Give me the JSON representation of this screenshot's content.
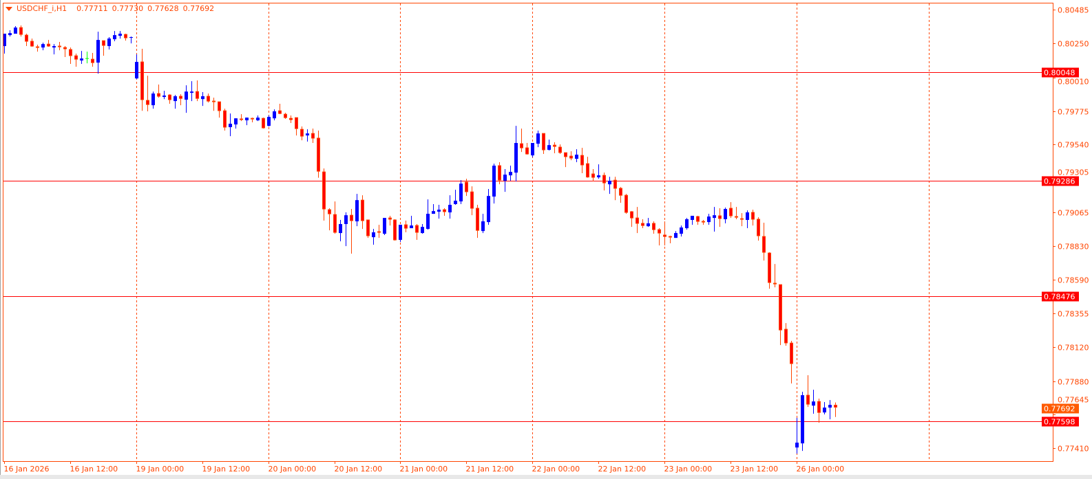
{
  "header": {
    "symbol": "USDCHF_i,H1",
    "open": "0.77711",
    "high": "0.77730",
    "low": "0.77628",
    "close": "0.77692"
  },
  "colors": {
    "frame": "#ff4500",
    "grid": "#ff4500",
    "bull": "#0000ff",
    "bear_fill": "#ff0000",
    "bear_outline": "#ff4500",
    "doji": "#00ff00",
    "hline": "#ff0000",
    "current_price_bg": "#ff5a00"
  },
  "chart_data": {
    "type": "candlestick",
    "title": "USDCHF_i,H1",
    "timeframe": "H1",
    "grid": true,
    "ylim": [
      0.7737,
      0.8053
    ],
    "y_ticks": [
      "0.80485",
      "0.80250",
      "0.80010",
      "0.79775",
      "0.79540",
      "0.79305",
      "0.79065",
      "0.78830",
      "0.78590",
      "0.78355",
      "0.78120",
      "0.77880",
      "0.77645",
      "0.77410"
    ],
    "x_labels": [
      "16 Jan 2026",
      "16 Jan 12:00",
      "19 Jan 00:00",
      "19 Jan 12:00",
      "20 Jan 00:00",
      "20 Jan 12:00",
      "21 Jan 00:00",
      "21 Jan 12:00",
      "22 Jan 00:00",
      "22 Jan 12:00",
      "23 Jan 00:00",
      "23 Jan 12:00",
      "26 Jan 00:00"
    ],
    "horizontal_lines": [
      "0.80048",
      "0.79286",
      "0.78476",
      "0.77598"
    ],
    "current_price": "0.77692",
    "ohlc_order": [
      "open",
      "high",
      "low",
      "close"
    ],
    "ohlc": [
      [
        0.80231,
        0.80318,
        0.80178,
        0.80318
      ],
      [
        0.80308,
        0.80342,
        0.80298,
        0.80322
      ],
      [
        0.80318,
        0.80371,
        0.80318,
        0.80361
      ],
      [
        0.80361,
        0.80376,
        0.80298,
        0.80308
      ],
      [
        0.80308,
        0.80318,
        0.80231,
        0.8026
      ],
      [
        0.80265,
        0.80284,
        0.80226,
        0.80226
      ],
      [
        0.80226,
        0.80241,
        0.80192,
        0.80221
      ],
      [
        0.80221,
        0.80255,
        0.80202,
        0.80245
      ],
      [
        0.80245,
        0.80274,
        0.80226,
        0.80226
      ],
      [
        0.80221,
        0.80245,
        0.80173,
        0.80231
      ],
      [
        0.80231,
        0.8026,
        0.80202,
        0.80221
      ],
      [
        0.80221,
        0.80231,
        0.80154,
        0.80207
      ],
      [
        0.80207,
        0.80221,
        0.80106,
        0.80159
      ],
      [
        0.80163,
        0.80178,
        0.80086,
        0.80134
      ],
      [
        0.8013,
        0.80197,
        0.80106,
        0.80144
      ],
      [
        0.80144,
        0.80192,
        0.8011,
        0.80144
      ],
      [
        0.80139,
        0.80183,
        0.80086,
        0.8011
      ],
      [
        0.80115,
        0.80332,
        0.80038,
        0.80274
      ],
      [
        0.80269,
        0.80269,
        0.80163,
        0.80231
      ],
      [
        0.80231,
        0.80294,
        0.80207,
        0.80284
      ],
      [
        0.80279,
        0.80337,
        0.80265,
        0.80308
      ],
      [
        0.80303,
        0.80337,
        0.80284,
        0.80318
      ],
      [
        0.80313,
        0.80318,
        0.80269,
        0.80284
      ],
      [
        0.80289,
        0.80298,
        0.8025,
        0.80294
      ],
      [
        0.80004,
        0.80173,
        0.79999,
        0.8012
      ],
      [
        0.8012,
        0.80212,
        0.79777,
        0.7985
      ],
      [
        0.7985,
        0.80023,
        0.79773,
        0.79816
      ],
      [
        0.79816,
        0.79912,
        0.79792,
        0.79898
      ],
      [
        0.79898,
        0.79961,
        0.79869,
        0.79874
      ],
      [
        0.79874,
        0.79917,
        0.79859,
        0.79884
      ],
      [
        0.79888,
        0.79893,
        0.79826,
        0.7985
      ],
      [
        0.79845,
        0.79888,
        0.79792,
        0.79879
      ],
      [
        0.79879,
        0.79893,
        0.79816,
        0.79859
      ],
      [
        0.79855,
        0.79956,
        0.79763,
        0.79912
      ],
      [
        0.79903,
        0.79985,
        0.79845,
        0.79912
      ],
      [
        0.79912,
        0.7999,
        0.79845,
        0.79859
      ],
      [
        0.79859,
        0.79908,
        0.79811,
        0.79879
      ],
      [
        0.79879,
        0.79898,
        0.79835,
        0.7984
      ],
      [
        0.79845,
        0.79869,
        0.79777,
        0.7984
      ],
      [
        0.7984,
        0.7984,
        0.79729,
        0.79773
      ],
      [
        0.79777,
        0.79792,
        0.79638,
        0.79657
      ],
      [
        0.79662,
        0.79758,
        0.79599,
        0.79686
      ],
      [
        0.79681,
        0.79724,
        0.79652,
        0.79724
      ],
      [
        0.7972,
        0.79753,
        0.79705,
        0.7971
      ],
      [
        0.7971,
        0.79729,
        0.79676,
        0.79729
      ],
      [
        0.79724,
        0.79729,
        0.79696,
        0.79715
      ],
      [
        0.7971,
        0.79744,
        0.79705,
        0.79729
      ],
      [
        0.79724,
        0.79729,
        0.79652,
        0.79652
      ],
      [
        0.79671,
        0.79744,
        0.79667,
        0.79734
      ],
      [
        0.79724,
        0.79787,
        0.7971,
        0.79773
      ],
      [
        0.79777,
        0.79826,
        0.79753,
        0.79753
      ],
      [
        0.79753,
        0.79763,
        0.7972,
        0.79724
      ],
      [
        0.79724,
        0.79744,
        0.79691,
        0.7971
      ],
      [
        0.79729,
        0.79729,
        0.79604,
        0.79647
      ],
      [
        0.79647,
        0.79667,
        0.7957,
        0.79594
      ],
      [
        0.79604,
        0.79647,
        0.79561,
        0.79618
      ],
      [
        0.79618,
        0.79652,
        0.79551,
        0.7958
      ],
      [
        0.79585,
        0.79638,
        0.79307,
        0.79348
      ],
      [
        0.79348,
        0.79372,
        0.79006,
        0.79083
      ],
      [
        0.79083,
        0.79093,
        0.78938,
        0.79049
      ],
      [
        0.79049,
        0.79141,
        0.78914,
        0.78919
      ],
      [
        0.78919,
        0.79011,
        0.78861,
        0.78982
      ],
      [
        0.78982,
        0.79064,
        0.78827,
        0.79044
      ],
      [
        0.79044,
        0.79088,
        0.78774,
        0.79001
      ],
      [
        0.79001,
        0.79194,
        0.78967,
        0.7915
      ],
      [
        0.7915,
        0.79184,
        0.78948,
        0.79001
      ],
      [
        0.79011,
        0.79011,
        0.78885,
        0.78895
      ],
      [
        0.7889,
        0.78948,
        0.78837,
        0.78924
      ],
      [
        0.78929,
        0.78977,
        0.78885,
        0.78919
      ],
      [
        0.78914,
        0.79025,
        0.78905,
        0.79025
      ],
      [
        0.79025,
        0.7904,
        0.78972,
        0.79011
      ],
      [
        0.79011,
        0.79016,
        0.78866,
        0.78866
      ],
      [
        0.78871,
        0.78977,
        0.78856,
        0.78977
      ],
      [
        0.78977,
        0.79006,
        0.78924,
        0.78948
      ],
      [
        0.78953,
        0.7904,
        0.78953,
        0.78972
      ],
      [
        0.78972,
        0.78982,
        0.78871,
        0.78919
      ],
      [
        0.78919,
        0.78982,
        0.78914,
        0.78962
      ],
      [
        0.78948,
        0.79155,
        0.78943,
        0.79054
      ],
      [
        0.79054,
        0.79122,
        0.79054,
        0.79073
      ],
      [
        0.79069,
        0.79117,
        0.7902,
        0.79083
      ],
      [
        0.79083,
        0.79093,
        0.7904,
        0.79064
      ],
      [
        0.79064,
        0.79184,
        0.7902,
        0.79117
      ],
      [
        0.79122,
        0.79223,
        0.79117,
        0.79146
      ],
      [
        0.79141,
        0.7929,
        0.79122,
        0.79266
      ],
      [
        0.79276,
        0.793,
        0.79179,
        0.79204
      ],
      [
        0.79208,
        0.79247,
        0.79044,
        0.79088
      ],
      [
        0.79093,
        0.79117,
        0.78885,
        0.78933
      ],
      [
        0.78933,
        0.79054,
        0.78919,
        0.79001
      ],
      [
        0.78996,
        0.79228,
        0.78977,
        0.79179
      ],
      [
        0.79175,
        0.79406,
        0.79126,
        0.79392
      ],
      [
        0.79392,
        0.79416,
        0.79261,
        0.79286
      ],
      [
        0.79286,
        0.79368,
        0.79208,
        0.79329
      ],
      [
        0.79324,
        0.79392,
        0.79286,
        0.79348
      ],
      [
        0.79343,
        0.79671,
        0.79281,
        0.79551
      ],
      [
        0.79546,
        0.79652,
        0.79488,
        0.79512
      ],
      [
        0.79517,
        0.79551,
        0.79469,
        0.79469
      ],
      [
        0.79464,
        0.79551,
        0.7945,
        0.79551
      ],
      [
        0.79546,
        0.79638,
        0.79522,
        0.79618
      ],
      [
        0.79618,
        0.79618,
        0.79474,
        0.79498
      ],
      [
        0.79503,
        0.79575,
        0.79498,
        0.79536
      ],
      [
        0.79536,
        0.79556,
        0.79479,
        0.79522
      ],
      [
        0.79522,
        0.79541,
        0.79474,
        0.79479
      ],
      [
        0.79483,
        0.79483,
        0.79382,
        0.7945
      ],
      [
        0.79459,
        0.79493,
        0.7943,
        0.7944
      ],
      [
        0.7944,
        0.79507,
        0.79416,
        0.79469
      ],
      [
        0.79464,
        0.79517,
        0.79339,
        0.79392
      ],
      [
        0.79406,
        0.79454,
        0.79307,
        0.79307
      ],
      [
        0.79334,
        0.79368,
        0.79281,
        0.79305
      ],
      [
        0.7931,
        0.79401,
        0.793,
        0.79324
      ],
      [
        0.79324,
        0.79343,
        0.79218,
        0.79266
      ],
      [
        0.79261,
        0.79314,
        0.79194,
        0.79286
      ],
      [
        0.7929,
        0.79314,
        0.7915,
        0.79228
      ],
      [
        0.79233,
        0.79242,
        0.79131,
        0.79179
      ],
      [
        0.79184,
        0.79194,
        0.79054,
        0.79059
      ],
      [
        0.79069,
        0.79073,
        0.78962,
        0.7902
      ],
      [
        0.79025,
        0.79102,
        0.78919,
        0.78982
      ],
      [
        0.78987,
        0.79016,
        0.78953,
        0.78967
      ],
      [
        0.78967,
        0.79025,
        0.78962,
        0.78987
      ],
      [
        0.78987,
        0.79001,
        0.78914,
        0.78938
      ],
      [
        0.78943,
        0.78953,
        0.78832,
        0.78914
      ],
      [
        0.78905,
        0.79001,
        0.78832,
        0.7889
      ],
      [
        0.78895,
        0.789,
        0.78847,
        0.7889
      ],
      [
        0.78885,
        0.78933,
        0.78885,
        0.78919
      ],
      [
        0.78914,
        0.78972,
        0.78895,
        0.78958
      ],
      [
        0.78953,
        0.79025,
        0.78943,
        0.79016
      ],
      [
        0.79011,
        0.7904,
        0.78977,
        0.7904
      ],
      [
        0.79035,
        0.7904,
        0.78977,
        0.78996
      ],
      [
        0.79001,
        0.79011,
        0.78977,
        0.78991
      ],
      [
        0.78996,
        0.79054,
        0.78977,
        0.79035
      ],
      [
        0.79025,
        0.79102,
        0.78929,
        0.79044
      ],
      [
        0.7904,
        0.79093,
        0.78962,
        0.79016
      ],
      [
        0.79016,
        0.79098,
        0.78987,
        0.79088
      ],
      [
        0.79093,
        0.79136,
        0.79025,
        0.79035
      ],
      [
        0.79035,
        0.79102,
        0.79016,
        0.79025
      ],
      [
        0.7902,
        0.79059,
        0.78967,
        0.79016
      ],
      [
        0.79011,
        0.79078,
        0.78953,
        0.79064
      ],
      [
        0.79064,
        0.79083,
        0.78972,
        0.79011
      ],
      [
        0.79016,
        0.7903,
        0.78866,
        0.78895
      ],
      [
        0.78895,
        0.78991,
        0.78726,
        0.78779
      ],
      [
        0.78779,
        0.78784,
        0.78528,
        0.78567
      ],
      [
        0.78567,
        0.78702,
        0.78538,
        0.78557
      ],
      [
        0.78557,
        0.78557,
        0.78133,
        0.78234
      ],
      [
        0.78244,
        0.78287,
        0.78128,
        0.78143
      ],
      [
        0.78147,
        0.78162,
        0.77863,
        0.77998
      ],
      [
        0.77414,
        0.77622,
        0.77371,
        0.77448
      ],
      [
        0.77443,
        0.77805,
        0.7739,
        0.77781
      ],
      [
        0.77781,
        0.77921,
        0.77699,
        0.77713
      ],
      [
        0.77708,
        0.77819,
        0.77651,
        0.77737
      ],
      [
        0.77737,
        0.77757,
        0.77588,
        0.77655
      ],
      [
        0.7766,
        0.77733,
        0.77646,
        0.77694
      ],
      [
        0.77694,
        0.77747,
        0.77612,
        0.77713
      ],
      [
        0.77711,
        0.7773,
        0.77628,
        0.77692
      ]
    ]
  }
}
